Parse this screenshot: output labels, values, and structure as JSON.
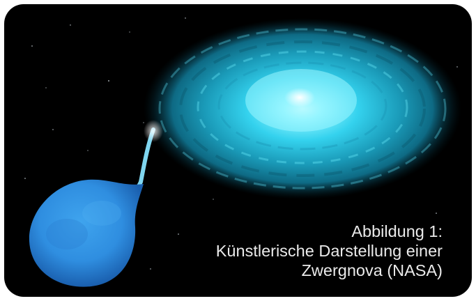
{
  "image": {
    "subject": "dwarf-nova-artwork",
    "colors": {
      "space": "#000000",
      "disk": "#2fc6e6",
      "disk_core": "#7ef2ff",
      "donor_star": "#3a96e6",
      "caption_text": "#eaeaea"
    }
  },
  "caption": {
    "line1": "Abbildung 1:",
    "line2": "Künstlerische Darstellung einer",
    "line3": "Zwergnova (NASA)"
  }
}
